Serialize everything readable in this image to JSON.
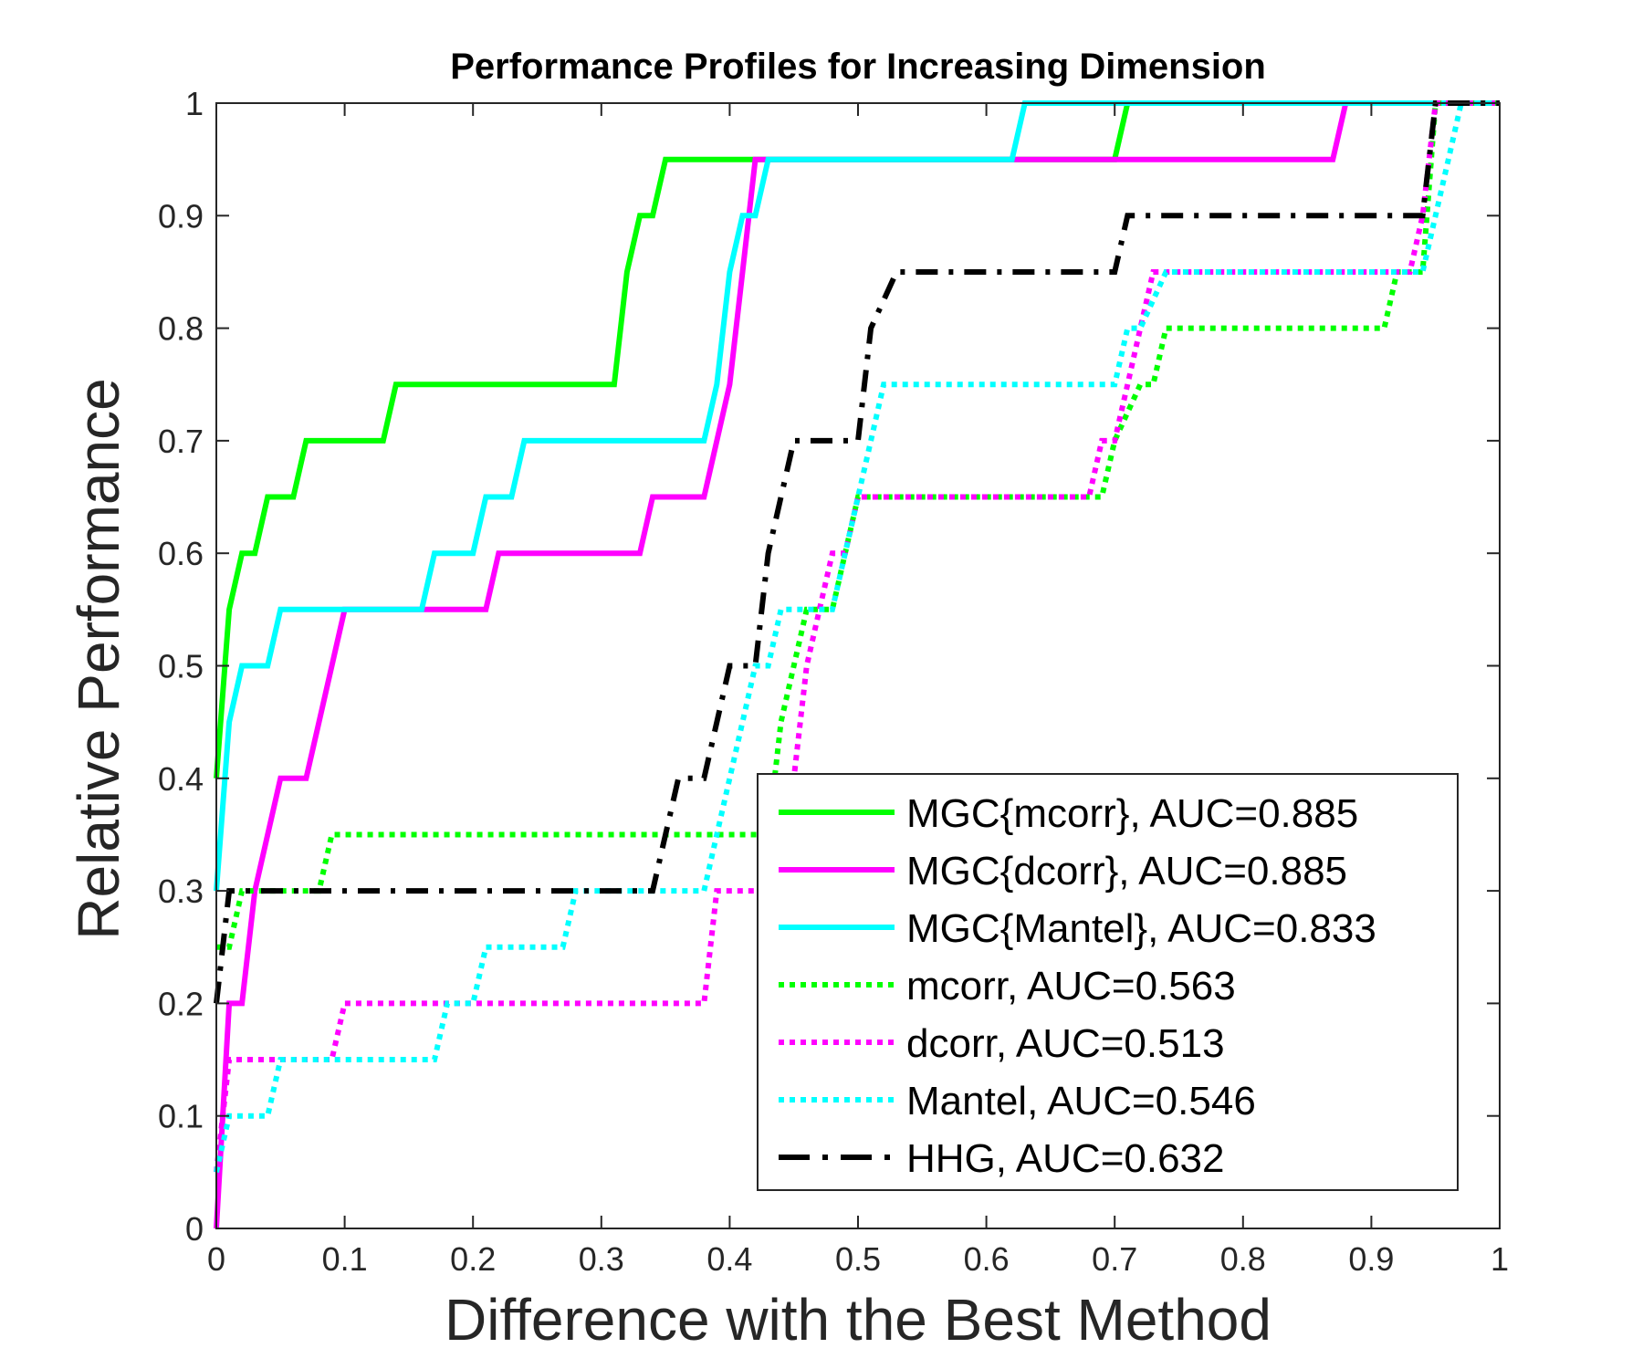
{
  "chart_data": {
    "type": "line",
    "title": "Performance Profiles for Increasing Dimension",
    "xlabel": "Difference with the Best Method",
    "ylabel": "Relative Performance",
    "xlim": [
      0,
      1
    ],
    "ylim": [
      0,
      1
    ],
    "xticks": [
      "0",
      "0.1",
      "0.2",
      "0.3",
      "0.4",
      "0.5",
      "0.6",
      "0.7",
      "0.8",
      "0.9",
      "1"
    ],
    "yticks": [
      "0",
      "0.1",
      "0.2",
      "0.3",
      "0.4",
      "0.5",
      "0.6",
      "0.7",
      "0.8",
      "0.9",
      "1"
    ],
    "grid": false,
    "legend_position": "bottom-right",
    "series": [
      {
        "name": "MGC{mcorr}, AUC=0.885",
        "color": "#00ff00",
        "style": "solid",
        "x": [
          0,
          0.01,
          0.02,
          0.03,
          0.04,
          0.05,
          0.06,
          0.07,
          0.08,
          0.13,
          0.14,
          0.31,
          0.32,
          0.33,
          0.34,
          0.35,
          0.36,
          0.7,
          0.71,
          1.0
        ],
        "y": [
          0.4,
          0.55,
          0.6,
          0.6,
          0.65,
          0.65,
          0.65,
          0.7,
          0.7,
          0.7,
          0.75,
          0.75,
          0.85,
          0.9,
          0.9,
          0.95,
          0.95,
          0.95,
          1.0,
          1.0
        ]
      },
      {
        "name": "MGC{dcorr}, AUC=0.885",
        "color": "#ff00ff",
        "style": "solid",
        "x": [
          0,
          0.01,
          0.02,
          0.03,
          0.05,
          0.06,
          0.07,
          0.08,
          0.1,
          0.21,
          0.22,
          0.33,
          0.34,
          0.36,
          0.38,
          0.4,
          0.41,
          0.42,
          0.43,
          0.87,
          0.88,
          1.0
        ],
        "y": [
          0,
          0.2,
          0.2,
          0.3,
          0.4,
          0.4,
          0.4,
          0.45,
          0.55,
          0.55,
          0.6,
          0.6,
          0.65,
          0.65,
          0.65,
          0.75,
          0.85,
          0.95,
          0.95,
          0.95,
          1.0,
          1.0
        ]
      },
      {
        "name": "MGC{Mantel}, AUC=0.833",
        "color": "#00ffff",
        "style": "solid",
        "x": [
          0,
          0.01,
          0.02,
          0.04,
          0.05,
          0.16,
          0.17,
          0.2,
          0.21,
          0.23,
          0.24,
          0.38,
          0.39,
          0.4,
          0.41,
          0.42,
          0.43,
          0.62,
          0.63,
          1.0
        ],
        "y": [
          0.3,
          0.45,
          0.5,
          0.5,
          0.55,
          0.55,
          0.6,
          0.6,
          0.65,
          0.65,
          0.7,
          0.7,
          0.75,
          0.85,
          0.9,
          0.9,
          0.95,
          0.95,
          1.0,
          1.0
        ]
      },
      {
        "name": "mcorr, AUC=0.563",
        "color": "#00ff00",
        "style": "dotted",
        "x": [
          0,
          0.01,
          0.02,
          0.08,
          0.09,
          0.43,
          0.44,
          0.45,
          0.46,
          0.47,
          0.48,
          0.49,
          0.5,
          0.51,
          0.69,
          0.7,
          0.72,
          0.73,
          0.74,
          0.91,
          0.92,
          0.94,
          0.95,
          1.0
        ],
        "y": [
          0.25,
          0.25,
          0.3,
          0.3,
          0.35,
          0.35,
          0.45,
          0.5,
          0.55,
          0.55,
          0.55,
          0.6,
          0.65,
          0.65,
          0.65,
          0.7,
          0.75,
          0.75,
          0.8,
          0.8,
          0.85,
          0.85,
          1.0,
          1.0
        ]
      },
      {
        "name": "dcorr, AUC=0.513",
        "color": "#ff00ff",
        "style": "dotted",
        "x": [
          0,
          0.01,
          0.09,
          0.1,
          0.38,
          0.39,
          0.43,
          0.44,
          0.45,
          0.46,
          0.47,
          0.48,
          0.49,
          0.5,
          0.51,
          0.68,
          0.69,
          0.7,
          0.71,
          0.72,
          0.73,
          0.74,
          0.93,
          0.94,
          0.95,
          1.0
        ],
        "y": [
          0.05,
          0.15,
          0.15,
          0.2,
          0.2,
          0.3,
          0.3,
          0.35,
          0.4,
          0.5,
          0.55,
          0.6,
          0.6,
          0.65,
          0.65,
          0.65,
          0.7,
          0.7,
          0.75,
          0.8,
          0.85,
          0.85,
          0.85,
          0.9,
          1.0,
          1.0
        ]
      },
      {
        "name": "Mantel, AUC=0.546",
        "color": "#00ffff",
        "style": "dotted",
        "x": [
          0,
          0.01,
          0.04,
          0.05,
          0.17,
          0.18,
          0.2,
          0.21,
          0.27,
          0.28,
          0.29,
          0.35,
          0.36,
          0.38,
          0.39,
          0.4,
          0.41,
          0.42,
          0.43,
          0.44,
          0.45,
          0.46,
          0.47,
          0.48,
          0.49,
          0.5,
          0.51,
          0.52,
          0.53,
          0.7,
          0.71,
          0.72,
          0.74,
          0.94,
          0.95,
          0.96,
          0.97,
          1.0
        ],
        "y": [
          0.05,
          0.1,
          0.1,
          0.15,
          0.15,
          0.2,
          0.2,
          0.25,
          0.25,
          0.3,
          0.3,
          0.3,
          0.3,
          0.3,
          0.35,
          0.4,
          0.45,
          0.5,
          0.5,
          0.55,
          0.55,
          0.55,
          0.55,
          0.55,
          0.6,
          0.65,
          0.7,
          0.75,
          0.75,
          0.75,
          0.8,
          0.8,
          0.85,
          0.85,
          0.9,
          0.95,
          1.0,
          1.0
        ]
      },
      {
        "name": "HHG, AUC=0.632",
        "color": "#000000",
        "style": "dashdot",
        "x": [
          0,
          0.01,
          0.34,
          0.35,
          0.36,
          0.38,
          0.4,
          0.42,
          0.43,
          0.44,
          0.45,
          0.46,
          0.5,
          0.51,
          0.53,
          0.7,
          0.71,
          0.94,
          0.95,
          1.0
        ],
        "y": [
          0.2,
          0.3,
          0.3,
          0.35,
          0.4,
          0.4,
          0.5,
          0.5,
          0.6,
          0.65,
          0.7,
          0.7,
          0.7,
          0.8,
          0.85,
          0.85,
          0.9,
          0.9,
          1.0,
          1.0
        ]
      }
    ]
  }
}
